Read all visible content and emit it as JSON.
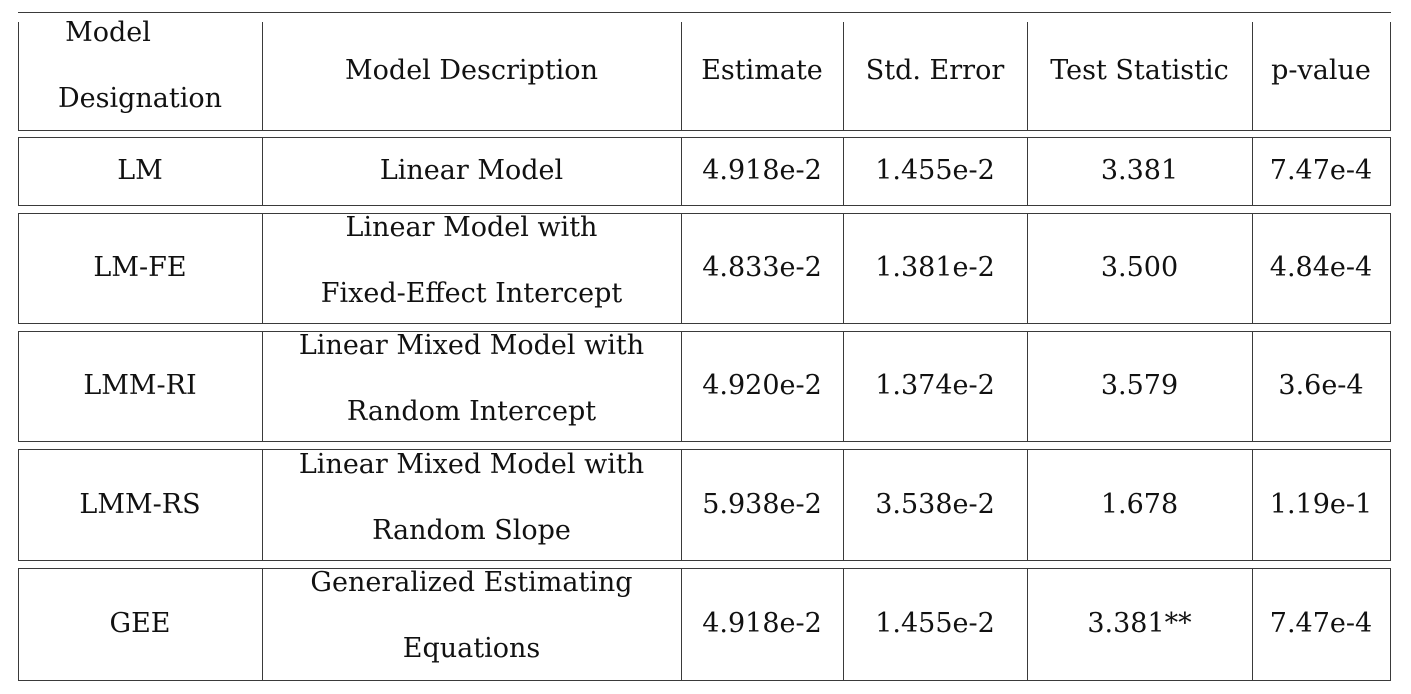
{
  "table": {
    "headers": [
      [
        "Model",
        "Designation"
      ],
      [
        "Model Description"
      ],
      [
        "Estimate"
      ],
      [
        "Std. Error"
      ],
      [
        "Test Statistic"
      ],
      [
        "p-value"
      ]
    ],
    "rows": [
      {
        "designation": "LM",
        "description": [
          "Linear Model"
        ],
        "estimate": "4.918e-2",
        "std_error": "1.455e-2",
        "test_statistic": "3.381",
        "p_value": "7.47e-4"
      },
      {
        "designation": "LM-FE",
        "description": [
          "Linear Model with",
          "Fixed-Effect Intercept"
        ],
        "estimate": "4.833e-2",
        "std_error": "1.381e-2",
        "test_statistic": "3.500",
        "p_value": "4.84e-4"
      },
      {
        "designation": "LMM-RI",
        "description": [
          "Linear Mixed Model with",
          "Random Intercept"
        ],
        "estimate": "4.920e-2",
        "std_error": "1.374e-2",
        "test_statistic": "3.579",
        "p_value": "3.6e-4"
      },
      {
        "designation": "LMM-RS",
        "description": [
          "Linear Mixed Model with",
          "Random Slope"
        ],
        "estimate": "5.938e-2",
        "std_error": "3.538e-2",
        "test_statistic": "1.678",
        "p_value": "1.19e-1"
      },
      {
        "designation": "GEE",
        "description": [
          "Generalized Estimating",
          "Equations"
        ],
        "estimate": "4.918e-2",
        "std_error": "1.455e-2",
        "test_statistic": "3.381**",
        "p_value": "7.47e-4"
      }
    ]
  }
}
